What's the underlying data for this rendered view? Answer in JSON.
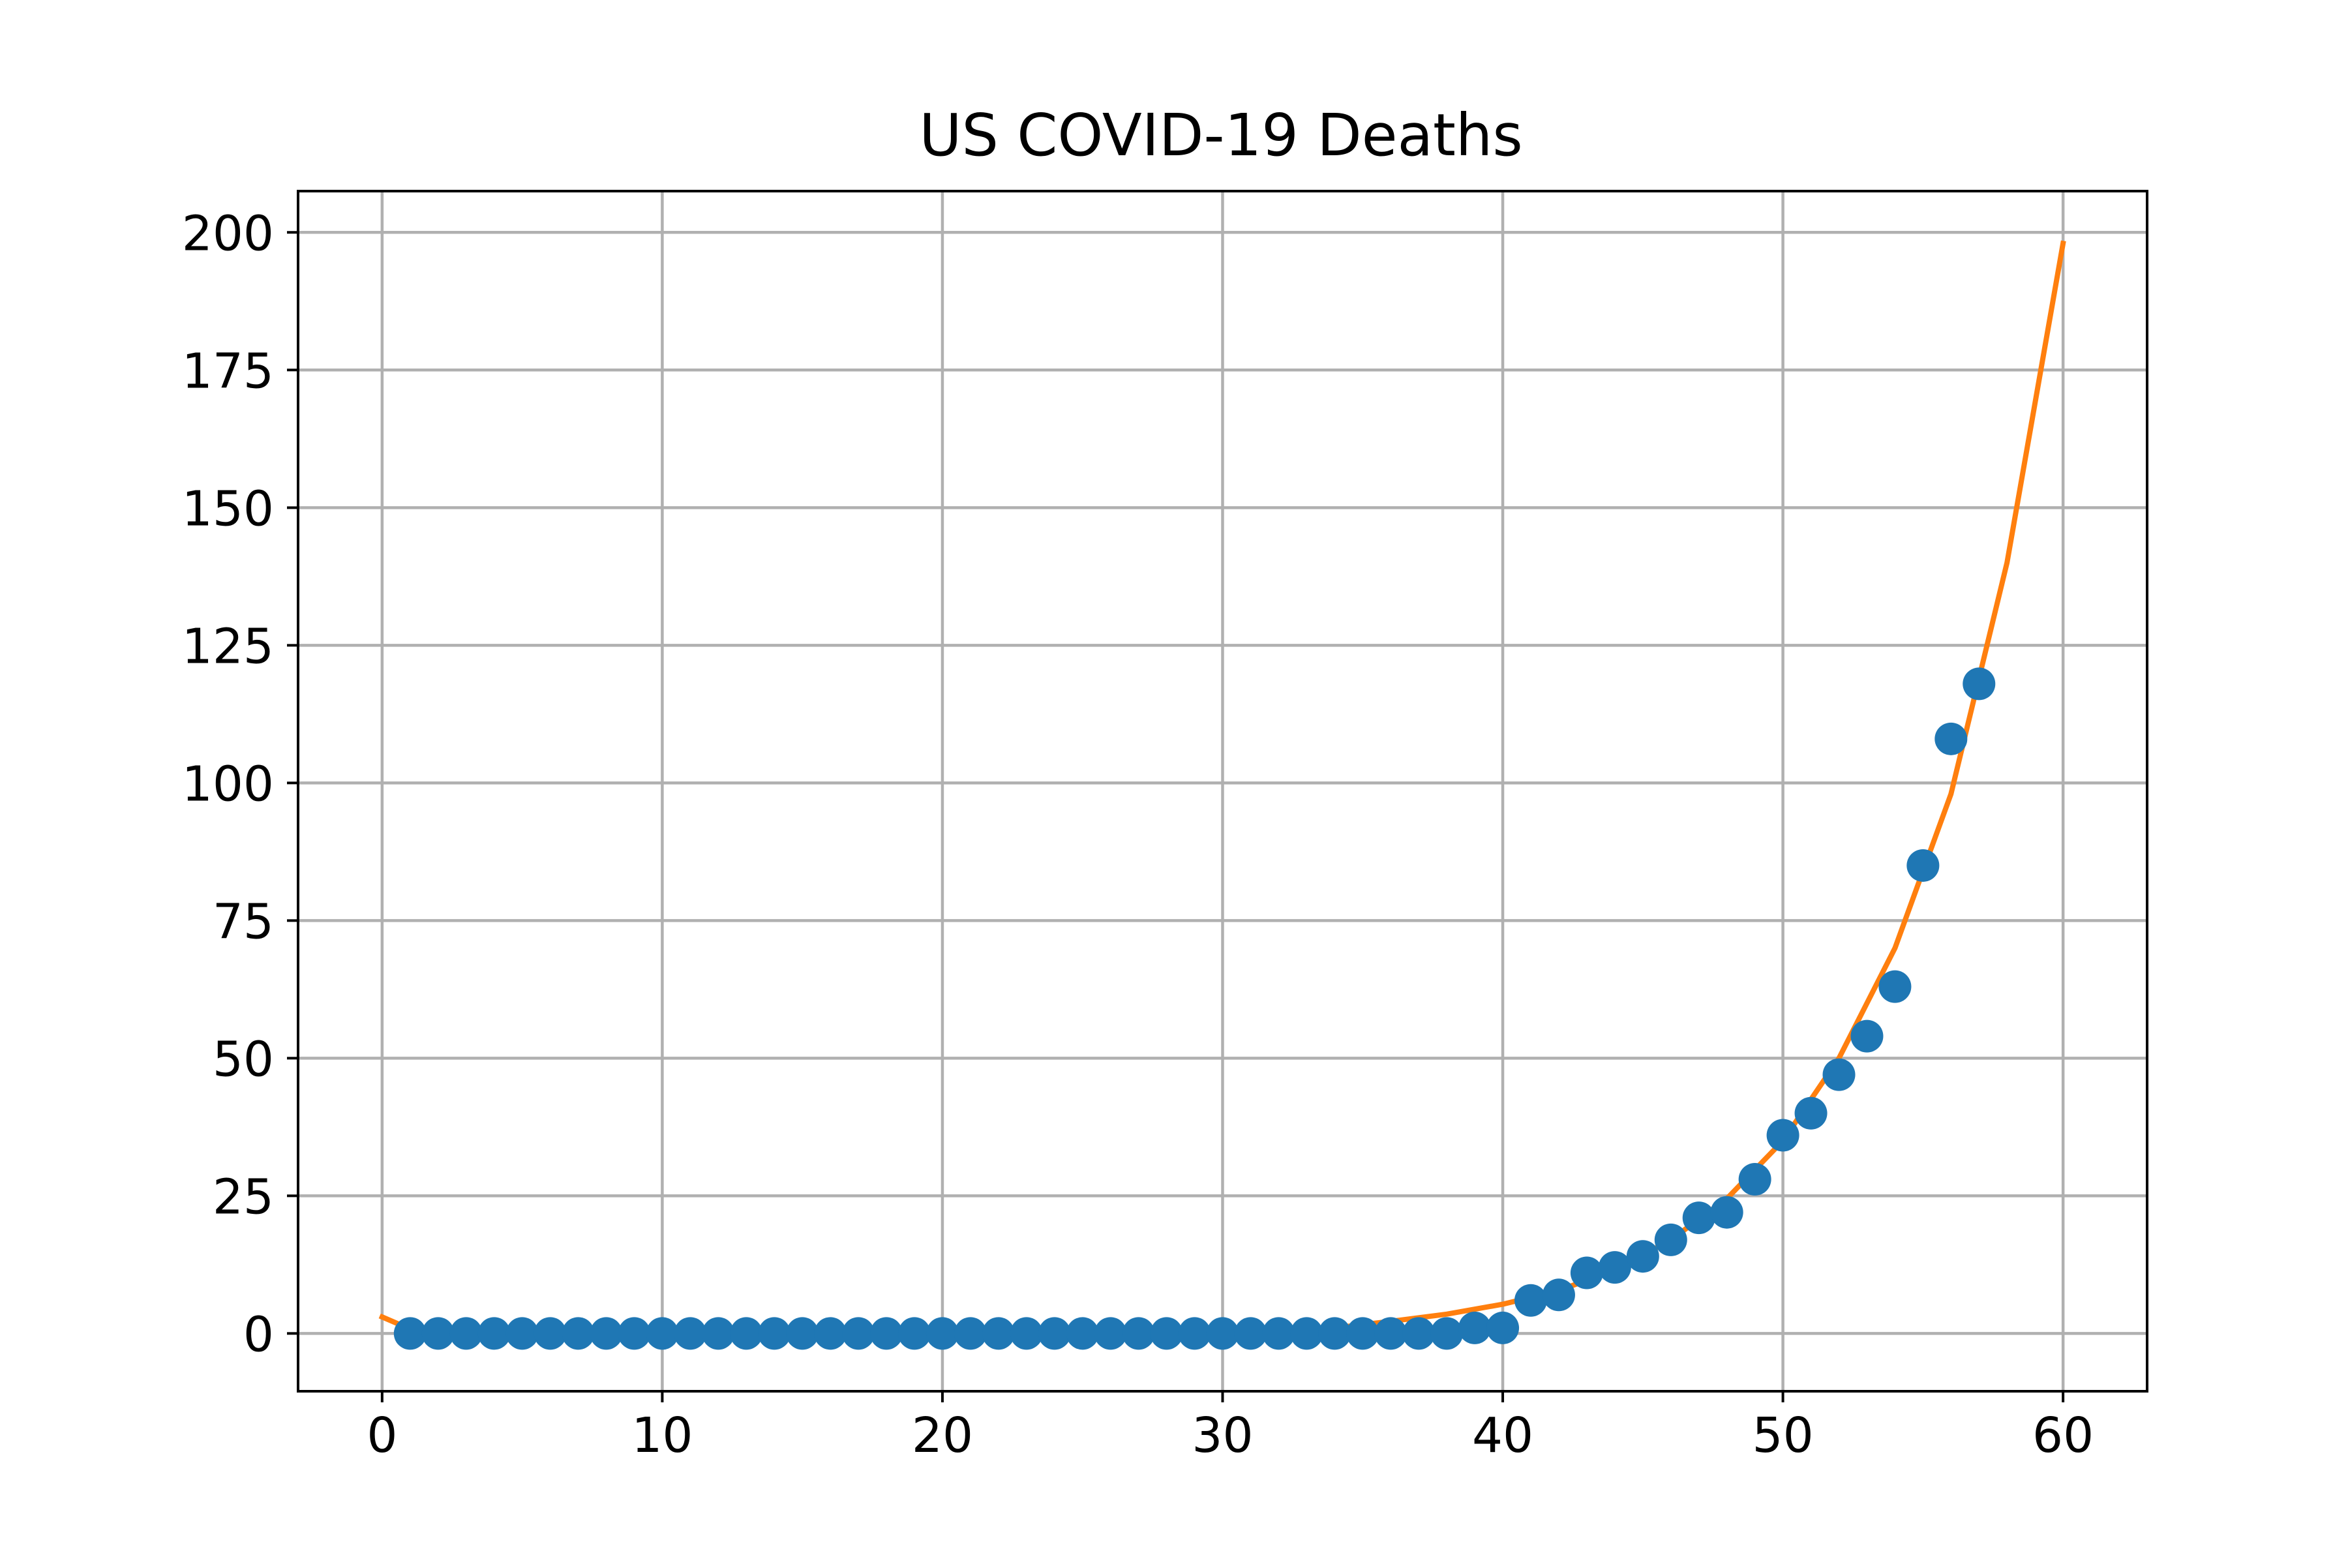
{
  "chart_data": {
    "type": "scatter",
    "title": "US COVID-19 Deaths",
    "xlabel": "",
    "ylabel": "",
    "xlim": [
      -3,
      63
    ],
    "ylim": [
      -10.5,
      207.5
    ],
    "x_ticks": [
      0,
      10,
      20,
      30,
      40,
      50,
      60
    ],
    "y_ticks": [
      0,
      25,
      50,
      75,
      100,
      125,
      150,
      175,
      200
    ],
    "x_tick_labels": [
      "0",
      "10",
      "20",
      "30",
      "40",
      "50",
      "60"
    ],
    "y_tick_labels": [
      "0",
      "25",
      "50",
      "75",
      "100",
      "125",
      "150",
      "175",
      "200"
    ],
    "grid": true,
    "legend": false,
    "series": [
      {
        "kind": "scatter",
        "color": "#1f77b4",
        "x": [
          1,
          2,
          3,
          4,
          5,
          6,
          7,
          8,
          9,
          10,
          11,
          12,
          13,
          14,
          15,
          16,
          17,
          18,
          19,
          20,
          21,
          22,
          23,
          24,
          25,
          26,
          27,
          28,
          29,
          30,
          31,
          32,
          33,
          34,
          35,
          36,
          37,
          38,
          39,
          40,
          41,
          42,
          43,
          44,
          45,
          46,
          47,
          48,
          49,
          50,
          51,
          52,
          53,
          54,
          55,
          56,
          57
        ],
        "y": [
          0,
          0,
          0,
          0,
          0,
          0,
          0,
          0,
          0,
          0,
          0,
          0,
          0,
          0,
          0,
          0,
          0,
          0,
          0,
          0,
          0,
          0,
          0,
          0,
          0,
          0,
          0,
          0,
          0,
          0,
          0,
          0,
          0,
          0,
          0,
          0,
          0,
          0,
          1,
          1,
          6,
          7,
          11,
          12,
          14,
          17,
          21,
          22,
          28,
          36,
          40,
          47,
          54,
          63,
          85,
          108,
          118
        ]
      },
      {
        "kind": "line",
        "color": "#ff7f0e",
        "x": [
          0,
          1,
          2,
          3,
          4,
          5,
          6,
          8,
          10,
          12,
          14,
          16,
          18,
          20,
          22,
          24,
          26,
          28,
          30,
          32,
          34,
          36,
          38,
          40,
          42,
          44,
          46,
          48,
          50,
          52,
          54,
          56,
          58,
          60
        ],
        "y": [
          3,
          0.8,
          -0.4,
          -0.9,
          -1.1,
          -1.1,
          -0.9,
          -0.4,
          0.2,
          0.6,
          0.7,
          0.6,
          0.3,
          -0.2,
          -0.5,
          -0.8,
          -0.9,
          -0.9,
          -0.6,
          0,
          1,
          2.2,
          3.5,
          5.3,
          7.8,
          11.5,
          17,
          24.5,
          35,
          50,
          70,
          98,
          140,
          198
        ]
      }
    ]
  }
}
